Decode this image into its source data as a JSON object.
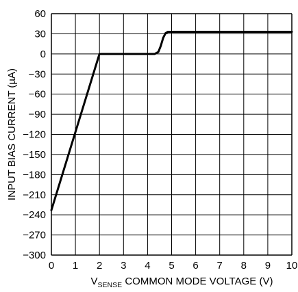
{
  "chart_data": {
    "type": "line",
    "title": "",
    "xlabel": {
      "prefix": "V",
      "subscript": "SENSE",
      "rest": " COMMON MODE VOLTAGE (V)"
    },
    "ylabel": "INPUT BIAS CURRENT (µA)",
    "xlim": [
      0,
      10
    ],
    "ylim": [
      -300,
      60
    ],
    "x_ticks": [
      "0",
      "1",
      "2",
      "3",
      "4",
      "5",
      "6",
      "7",
      "8",
      "9",
      "10"
    ],
    "y_ticks": [
      "60",
      "30",
      "0",
      "−30",
      "−60",
      "−90",
      "−120",
      "−150",
      "−180",
      "−210",
      "−240",
      "−270",
      "−300"
    ],
    "x_tick_values": [
      0,
      1,
      2,
      3,
      4,
      5,
      6,
      7,
      8,
      9,
      10
    ],
    "y_tick_values": [
      60,
      30,
      0,
      -30,
      -60,
      -90,
      -120,
      -150,
      -180,
      -210,
      -240,
      -270,
      -300
    ],
    "grid": true,
    "series": [
      {
        "name": "",
        "x": [
          0,
          2.0,
          4.3,
          4.45,
          4.55,
          4.65,
          4.75,
          4.85,
          10
        ],
        "y": [
          -233,
          0,
          0,
          3,
          12,
          24,
          31,
          33,
          33
        ]
      }
    ]
  },
  "colors": {
    "line": "#000000",
    "grid": "#000000",
    "background": "#ffffff"
  }
}
